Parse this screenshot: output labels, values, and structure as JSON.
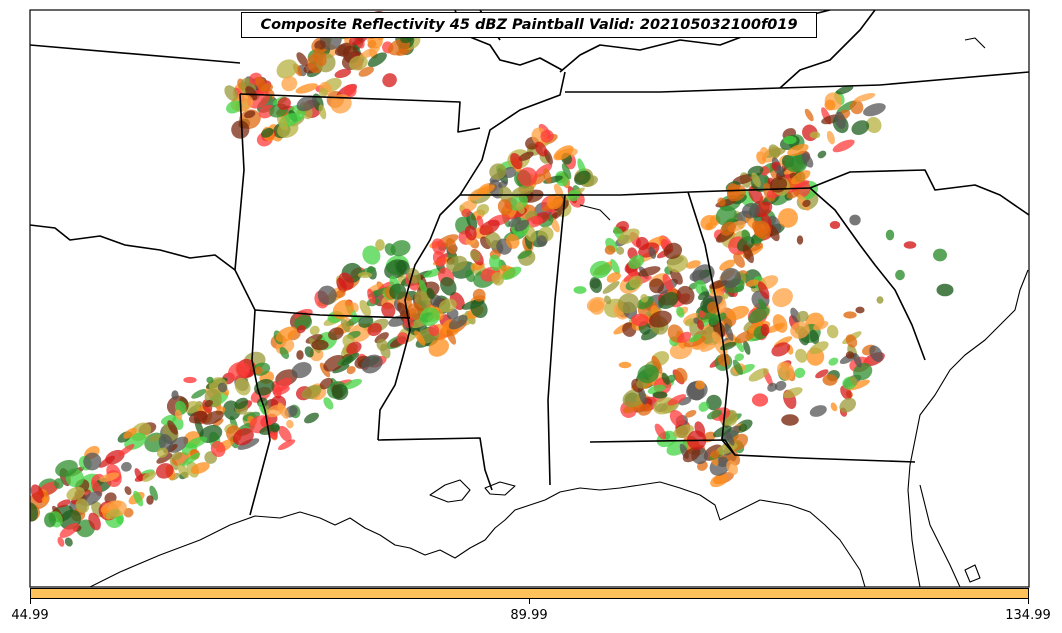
{
  "map": {
    "title": "Composite Reflectivity 45 dBZ Paintball Valid: 202105032100f019",
    "palette": [
      "#ff3b3b",
      "#ff8c1a",
      "#ffa040",
      "#7a2a10",
      "#2f8f2f",
      "#44d444",
      "#9a9a3a",
      "#b5b040",
      "#555555",
      "#1f5f1f",
      "#d41a1a",
      "#e06a10"
    ]
  },
  "colorbar": {
    "color": "#ffc25a",
    "ticks": [
      "44.99",
      "89.99",
      "134.99"
    ]
  }
}
